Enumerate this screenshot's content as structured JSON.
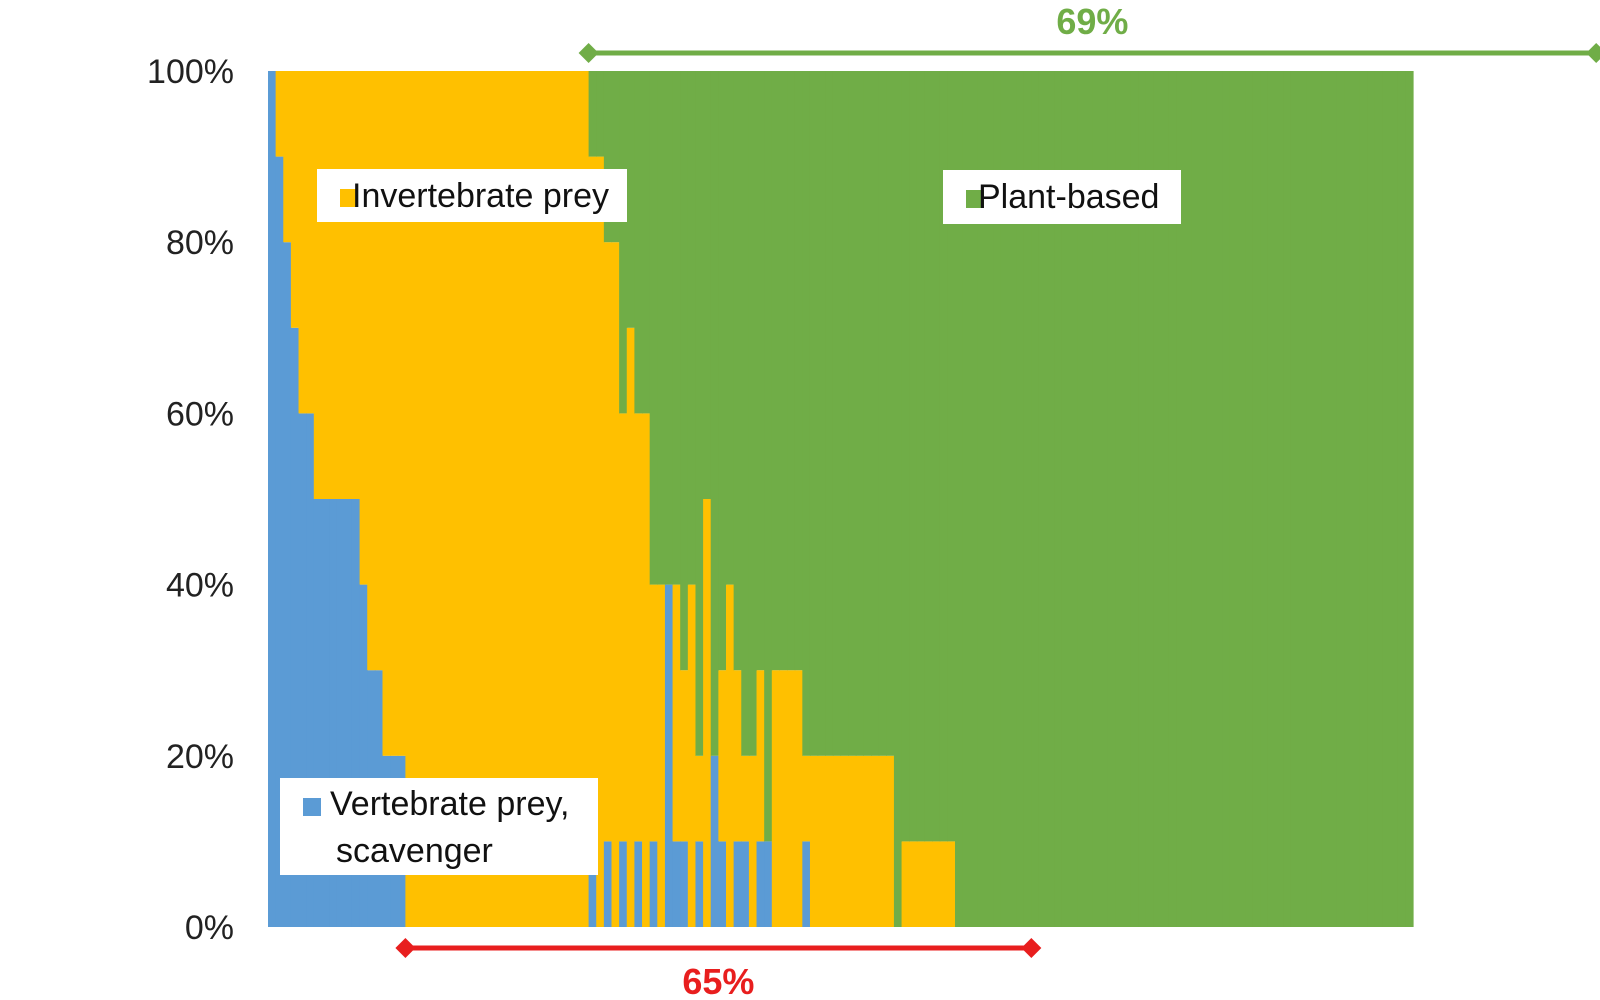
{
  "chart_data": {
    "type": "bar",
    "stacked_percent": true,
    "ylim": [
      0,
      100
    ],
    "y_tick_labels": [
      "0%",
      "20%",
      "40%",
      "60%",
      "80%",
      "100%"
    ],
    "grid": false,
    "colors": {
      "vertebrate": "#5B9BD5",
      "invertebrate": "#FFC000",
      "plant": "#70AD47"
    },
    "legend": [
      {
        "key": "vertebrate",
        "label_line1": "Vertebrate prey,",
        "label_line2": "scavenger"
      },
      {
        "key": "invertebrate",
        "label": "Invertebrate prey"
      },
      {
        "key": "plant",
        "label": "Plant-based"
      }
    ],
    "series_order": [
      "vertebrate",
      "invertebrate",
      "plant"
    ],
    "bars": [
      [
        100,
        0,
        0
      ],
      [
        90,
        10,
        0
      ],
      [
        80,
        20,
        0
      ],
      [
        70,
        30,
        0
      ],
      [
        60,
        40,
        0
      ],
      [
        60,
        40,
        0
      ],
      [
        50,
        50,
        0
      ],
      [
        50,
        50,
        0
      ],
      [
        50,
        50,
        0
      ],
      [
        50,
        50,
        0
      ],
      [
        50,
        50,
        0
      ],
      [
        50,
        50,
        0
      ],
      [
        40,
        60,
        0
      ],
      [
        30,
        70,
        0
      ],
      [
        30,
        70,
        0
      ],
      [
        20,
        80,
        0
      ],
      [
        20,
        80,
        0
      ],
      [
        20,
        80,
        0
      ],
      [
        0,
        100,
        0
      ],
      [
        0,
        100,
        0
      ],
      [
        0,
        100,
        0
      ],
      [
        0,
        100,
        0
      ],
      [
        0,
        100,
        0
      ],
      [
        0,
        100,
        0
      ],
      [
        0,
        100,
        0
      ],
      [
        0,
        100,
        0
      ],
      [
        0,
        100,
        0
      ],
      [
        0,
        100,
        0
      ],
      [
        0,
        100,
        0
      ],
      [
        0,
        100,
        0
      ],
      [
        0,
        100,
        0
      ],
      [
        0,
        100,
        0
      ],
      [
        0,
        100,
        0
      ],
      [
        0,
        100,
        0
      ],
      [
        0,
        100,
        0
      ],
      [
        0,
        100,
        0
      ],
      [
        0,
        100,
        0
      ],
      [
        0,
        100,
        0
      ],
      [
        0,
        100,
        0
      ],
      [
        0,
        100,
        0
      ],
      [
        0,
        100,
        0
      ],
      [
        0,
        100,
        0
      ],
      [
        10,
        80,
        10
      ],
      [
        0,
        90,
        10
      ],
      [
        10,
        70,
        20
      ],
      [
        0,
        80,
        20
      ],
      [
        10,
        50,
        40
      ],
      [
        0,
        70,
        30
      ],
      [
        10,
        50,
        40
      ],
      [
        0,
        60,
        40
      ],
      [
        10,
        30,
        60
      ],
      [
        0,
        40,
        60
      ],
      [
        40,
        0,
        60
      ],
      [
        10,
        30,
        60
      ],
      [
        10,
        20,
        70
      ],
      [
        0,
        40,
        60
      ],
      [
        10,
        10,
        80
      ],
      [
        0,
        50,
        50
      ],
      [
        20,
        0,
        80
      ],
      [
        10,
        20,
        70
      ],
      [
        0,
        40,
        60
      ],
      [
        10,
        20,
        70
      ],
      [
        10,
        10,
        80
      ],
      [
        0,
        20,
        80
      ],
      [
        10,
        20,
        70
      ],
      [
        10,
        0,
        90
      ],
      [
        0,
        30,
        70
      ],
      [
        0,
        30,
        70
      ],
      [
        0,
        30,
        70
      ],
      [
        0,
        30,
        70
      ],
      [
        10,
        10,
        80
      ],
      [
        0,
        20,
        80
      ],
      [
        0,
        20,
        80
      ],
      [
        0,
        20,
        80
      ],
      [
        0,
        20,
        80
      ],
      [
        0,
        20,
        80
      ],
      [
        0,
        20,
        80
      ],
      [
        0,
        20,
        80
      ],
      [
        0,
        20,
        80
      ],
      [
        0,
        20,
        80
      ],
      [
        0,
        20,
        80
      ],
      [
        0,
        20,
        80
      ],
      [
        0,
        0,
        100
      ],
      [
        0,
        10,
        90
      ],
      [
        0,
        10,
        90
      ],
      [
        0,
        10,
        90
      ],
      [
        0,
        10,
        90
      ],
      [
        0,
        10,
        90
      ],
      [
        0,
        10,
        90
      ],
      [
        0,
        10,
        90
      ],
      [
        0,
        0,
        100
      ],
      [
        0,
        0,
        100
      ],
      [
        0,
        0,
        100
      ],
      [
        0,
        0,
        100
      ],
      [
        0,
        0,
        100
      ],
      [
        0,
        0,
        100
      ],
      [
        0,
        0,
        100
      ],
      [
        0,
        0,
        100
      ],
      [
        0,
        0,
        100
      ],
      [
        0,
        0,
        100
      ],
      [
        0,
        0,
        100
      ],
      [
        0,
        0,
        100
      ],
      [
        0,
        0,
        100
      ],
      [
        0,
        0,
        100
      ],
      [
        0,
        0,
        100
      ],
      [
        0,
        0,
        100
      ],
      [
        0,
        0,
        100
      ],
      [
        0,
        0,
        100
      ],
      [
        0,
        0,
        100
      ],
      [
        0,
        0,
        100
      ],
      [
        0,
        0,
        100
      ],
      [
        0,
        0,
        100
      ],
      [
        0,
        0,
        100
      ],
      [
        0,
        0,
        100
      ],
      [
        0,
        0,
        100
      ],
      [
        0,
        0,
        100
      ],
      [
        0,
        0,
        100
      ],
      [
        0,
        0,
        100
      ],
      [
        0,
        0,
        100
      ],
      [
        0,
        0,
        100
      ],
      [
        0,
        0,
        100
      ],
      [
        0,
        0,
        100
      ],
      [
        0,
        0,
        100
      ],
      [
        0,
        0,
        100
      ],
      [
        0,
        0,
        100
      ],
      [
        0,
        0,
        100
      ],
      [
        0,
        0,
        100
      ],
      [
        0,
        0,
        100
      ],
      [
        0,
        0,
        100
      ],
      [
        0,
        0,
        100
      ],
      [
        0,
        0,
        100
      ],
      [
        0,
        0,
        100
      ],
      [
        0,
        0,
        100
      ],
      [
        0,
        0,
        100
      ],
      [
        0,
        0,
        100
      ],
      [
        0,
        0,
        100
      ],
      [
        0,
        0,
        100
      ],
      [
        0,
        0,
        100
      ],
      [
        0,
        0,
        100
      ],
      [
        0,
        0,
        100
      ],
      [
        0,
        0,
        100
      ],
      [
        0,
        0,
        100
      ],
      [
        0,
        0,
        100
      ],
      [
        0,
        0,
        100
      ],
      [
        0,
        0,
        100
      ],
      [
        0,
        0,
        100
      ],
      [
        0,
        0,
        100
      ],
      [
        0,
        0,
        100
      ],
      [
        0,
        0,
        100
      ],
      [
        0,
        0,
        100
      ]
    ],
    "annotations": [
      {
        "text": "69%",
        "color": "#70AD47",
        "span_start_bar": 42,
        "span_end_bar": 174,
        "position": "top"
      },
      {
        "text": "65%",
        "color": "#E81E1E",
        "span_start_bar": 18,
        "span_end_bar": 100,
        "position": "bottom"
      }
    ]
  }
}
